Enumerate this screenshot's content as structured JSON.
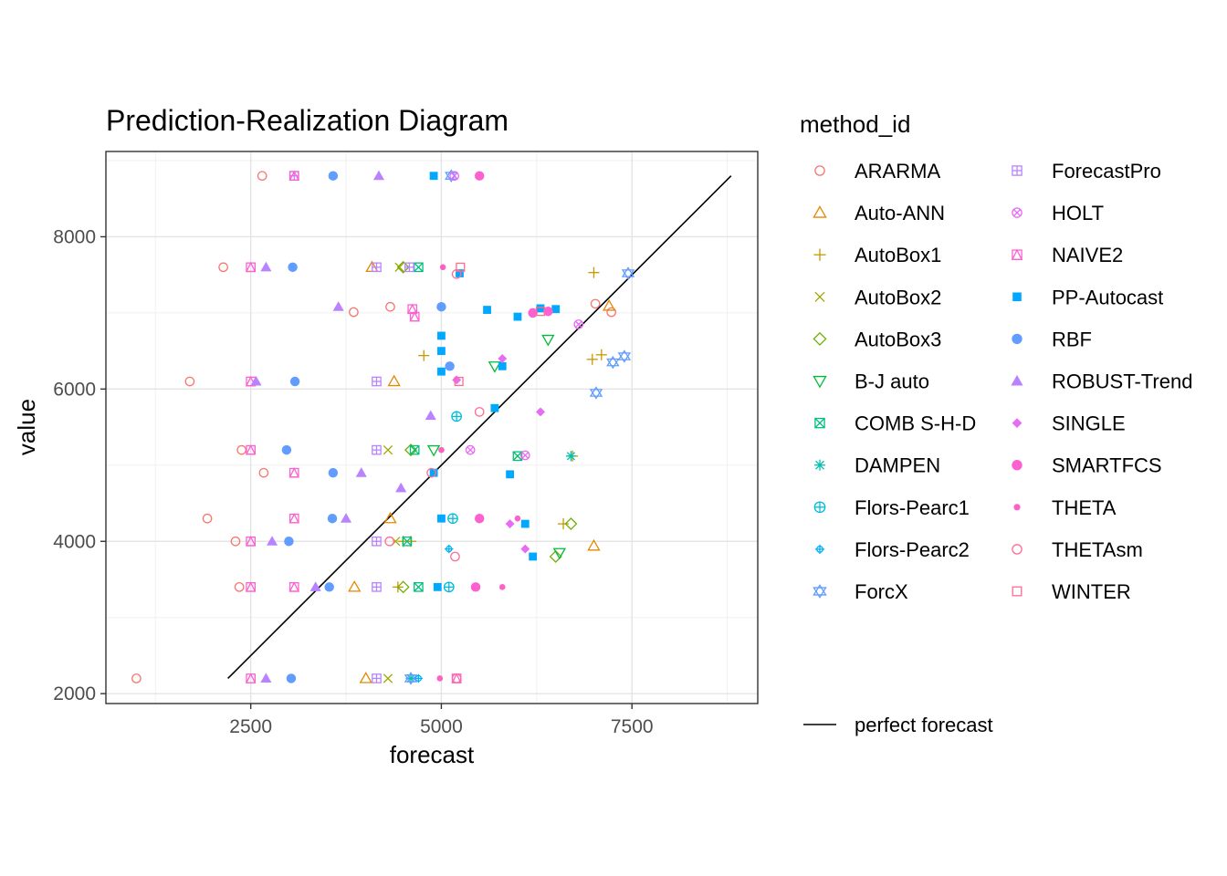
{
  "chart_data": {
    "type": "scatter",
    "title": "Prediction-Realization Diagram",
    "xlabel": "forecast",
    "ylabel": "value",
    "xlim": [
      600,
      9150
    ],
    "ylim": [
      1870,
      9120
    ],
    "x_ticks": [
      2500,
      5000,
      7500
    ],
    "y_ticks": [
      2000,
      4000,
      6000,
      8000
    ],
    "grid": true,
    "legend_position": "right",
    "legend_title": "method_id",
    "reference_line": {
      "name": "perfect forecast",
      "x": [
        2200,
        8800
      ],
      "y": [
        2200,
        8800
      ],
      "color": "#000000"
    },
    "series": [
      {
        "name": "ARARMA",
        "color": "#F8766D",
        "shape": "circle-open",
        "points": [
          [
            2650,
            8800
          ],
          [
            2140,
            7600
          ],
          [
            3850,
            7010
          ],
          [
            4330,
            7080
          ],
          [
            1700,
            6100
          ],
          [
            2380,
            5200
          ],
          [
            2670,
            4900
          ],
          [
            1930,
            4300
          ],
          [
            2300,
            4000
          ],
          [
            2350,
            3400
          ],
          [
            1000,
            2200
          ],
          [
            7020,
            7120
          ],
          [
            7230,
            7010
          ]
        ]
      },
      {
        "name": "Auto-ANN",
        "color": "#E58700",
        "shape": "triangle-open",
        "points": [
          [
            4090,
            7600
          ],
          [
            4380,
            6100
          ],
          [
            4330,
            4300
          ],
          [
            7000,
            3940
          ],
          [
            3860,
            3400
          ],
          [
            4010,
            2200
          ],
          [
            7200,
            7090
          ]
        ]
      },
      {
        "name": "AutoBox1",
        "color": "#C99800",
        "shape": "plus",
        "points": [
          [
            7000,
            7530
          ],
          [
            6980,
            6390
          ],
          [
            7100,
            6450
          ],
          [
            6720,
            5120
          ],
          [
            4500,
            4000
          ],
          [
            4600,
            4000
          ],
          [
            6600,
            4230
          ],
          [
            4430,
            3400
          ],
          [
            4770,
            6440
          ]
        ]
      },
      {
        "name": "AutoBox2",
        "color": "#A3A500",
        "shape": "cross",
        "points": [
          [
            4450,
            7600
          ],
          [
            4300,
            5200
          ],
          [
            4400,
            4000
          ],
          [
            4300,
            2200
          ],
          [
            6000,
            5120
          ]
        ]
      },
      {
        "name": "AutoBox3",
        "color": "#6BB100",
        "shape": "diamond-open",
        "points": [
          [
            4500,
            7600
          ],
          [
            4600,
            5200
          ],
          [
            6500,
            3800
          ],
          [
            4500,
            3400
          ],
          [
            6700,
            4230
          ]
        ]
      },
      {
        "name": "B-J auto",
        "color": "#00BA38",
        "shape": "triangle-down-open",
        "points": [
          [
            6400,
            6650
          ],
          [
            5700,
            6300
          ],
          [
            4900,
            5200
          ],
          [
            6550,
            3850
          ]
        ]
      },
      {
        "name": "COMB S-H-D",
        "color": "#00BF7D",
        "shape": "square-cross",
        "points": [
          [
            4700,
            7600
          ],
          [
            4650,
            5200
          ],
          [
            4550,
            4000
          ],
          [
            4700,
            3400
          ],
          [
            6000,
            5120
          ]
        ]
      },
      {
        "name": "DAMPEN",
        "color": "#00C0AF",
        "shape": "asterisk",
        "points": [
          [
            6700,
            5120
          ],
          [
            4600,
            2200
          ]
        ]
      },
      {
        "name": "Flors-Pearc1",
        "color": "#00BCD8",
        "shape": "circle-plus",
        "points": [
          [
            5200,
            5640
          ],
          [
            5150,
            4300
          ],
          [
            5100,
            3400
          ]
        ]
      },
      {
        "name": "Flors-Pearc2",
        "color": "#00B0F6",
        "shape": "circle-dot",
        "points": [
          [
            4700,
            2200
          ],
          [
            5100,
            3900
          ]
        ]
      },
      {
        "name": "ForcX",
        "color": "#619CFF",
        "shape": "star-of-david",
        "points": [
          [
            7450,
            7520
          ],
          [
            7400,
            6430
          ],
          [
            7250,
            6350
          ],
          [
            7030,
            5950
          ],
          [
            5130,
            8800
          ],
          [
            4600,
            2200
          ]
        ]
      },
      {
        "name": "ForecastPro",
        "color": "#B983FF",
        "shape": "square-plus",
        "points": [
          [
            3070,
            8800
          ],
          [
            4150,
            7600
          ],
          [
            4150,
            6100
          ],
          [
            4150,
            5200
          ],
          [
            4150,
            4000
          ],
          [
            4150,
            3400
          ],
          [
            4150,
            2200
          ],
          [
            4580,
            7600
          ]
        ]
      },
      {
        "name": "HOLT",
        "color": "#E76BF3",
        "shape": "circle-cross",
        "points": [
          [
            5170,
            8800
          ],
          [
            6800,
            6850
          ],
          [
            6100,
            5130
          ],
          [
            5380,
            5200
          ]
        ]
      },
      {
        "name": "NAIVE2",
        "color": "#FD61D1",
        "shape": "square-triangle",
        "points": [
          [
            2500,
            7600
          ],
          [
            2500,
            6100
          ],
          [
            2500,
            5200
          ],
          [
            2500,
            4000
          ],
          [
            2500,
            3400
          ],
          [
            2500,
            2200
          ],
          [
            3070,
            4900
          ],
          [
            3070,
            4300
          ],
          [
            3070,
            3400
          ],
          [
            3070,
            8800
          ],
          [
            5200,
            2200
          ],
          [
            4650,
            6950
          ],
          [
            4620,
            7050
          ]
        ]
      },
      {
        "name": "PP-Autocast",
        "color": "#00A9FF",
        "shape": "square",
        "points": [
          [
            4900,
            8800
          ],
          [
            5240,
            7520
          ],
          [
            5600,
            7040
          ],
          [
            5000,
            6700
          ],
          [
            5000,
            6500
          ],
          [
            5000,
            6230
          ],
          [
            5800,
            6300
          ],
          [
            5700,
            5750
          ],
          [
            4900,
            4900
          ],
          [
            5000,
            4300
          ],
          [
            4950,
            3400
          ],
          [
            5900,
            4880
          ],
          [
            6100,
            4230
          ],
          [
            6200,
            3800
          ],
          [
            6000,
            6950
          ],
          [
            6300,
            7060
          ],
          [
            6500,
            7050
          ]
        ]
      },
      {
        "name": "RBF",
        "color": "#619CFF",
        "shape": "circle",
        "points": [
          [
            3580,
            8800
          ],
          [
            3050,
            7600
          ],
          [
            3080,
            6100
          ],
          [
            2970,
            5200
          ],
          [
            3580,
            4900
          ],
          [
            3570,
            4300
          ],
          [
            3000,
            4000
          ],
          [
            3530,
            3400
          ],
          [
            3030,
            2200
          ],
          [
            5000,
            7080
          ],
          [
            5110,
            6300
          ]
        ]
      },
      {
        "name": "ROBUST-Trend",
        "color": "#B983FF",
        "shape": "triangle",
        "points": [
          [
            4180,
            8800
          ],
          [
            2700,
            7600
          ],
          [
            3650,
            7080
          ],
          [
            2570,
            6100
          ],
          [
            3950,
            4900
          ],
          [
            3750,
            4300
          ],
          [
            2780,
            4000
          ],
          [
            3350,
            3400
          ],
          [
            2700,
            2200
          ],
          [
            4860,
            5650
          ],
          [
            4470,
            4700
          ]
        ]
      },
      {
        "name": "SINGLE",
        "color": "#E76BF3",
        "shape": "diamond",
        "points": [
          [
            5200,
            6120
          ],
          [
            5900,
            4230
          ],
          [
            6100,
            3900
          ],
          [
            6300,
            5700
          ],
          [
            5800,
            6400
          ]
        ]
      },
      {
        "name": "SMARTFCS",
        "color": "#FD61D1",
        "shape": "circle",
        "points": [
          [
            5500,
            8800
          ],
          [
            6200,
            7000
          ],
          [
            6400,
            7020
          ],
          [
            5500,
            4300
          ],
          [
            5450,
            3400
          ]
        ]
      },
      {
        "name": "THETA",
        "color": "#FF61C3",
        "shape": "circle-small",
        "points": [
          [
            5020,
            7600
          ],
          [
            4980,
            2200
          ],
          [
            5000,
            5200
          ],
          [
            5800,
            3400
          ],
          [
            6000,
            4300
          ]
        ]
      },
      {
        "name": "THETAsm",
        "color": "#FF6C91",
        "shape": "circle-open",
        "points": [
          [
            4320,
            4000
          ],
          [
            5180,
            3800
          ],
          [
            4870,
            4900
          ],
          [
            5200,
            2200
          ],
          [
            5500,
            5700
          ],
          [
            5200,
            7510
          ]
        ]
      },
      {
        "name": "WINTER",
        "color": "#FF6C91",
        "shape": "square-open",
        "points": [
          [
            5250,
            7600
          ],
          [
            6300,
            7020
          ],
          [
            5230,
            6100
          ]
        ]
      }
    ]
  }
}
